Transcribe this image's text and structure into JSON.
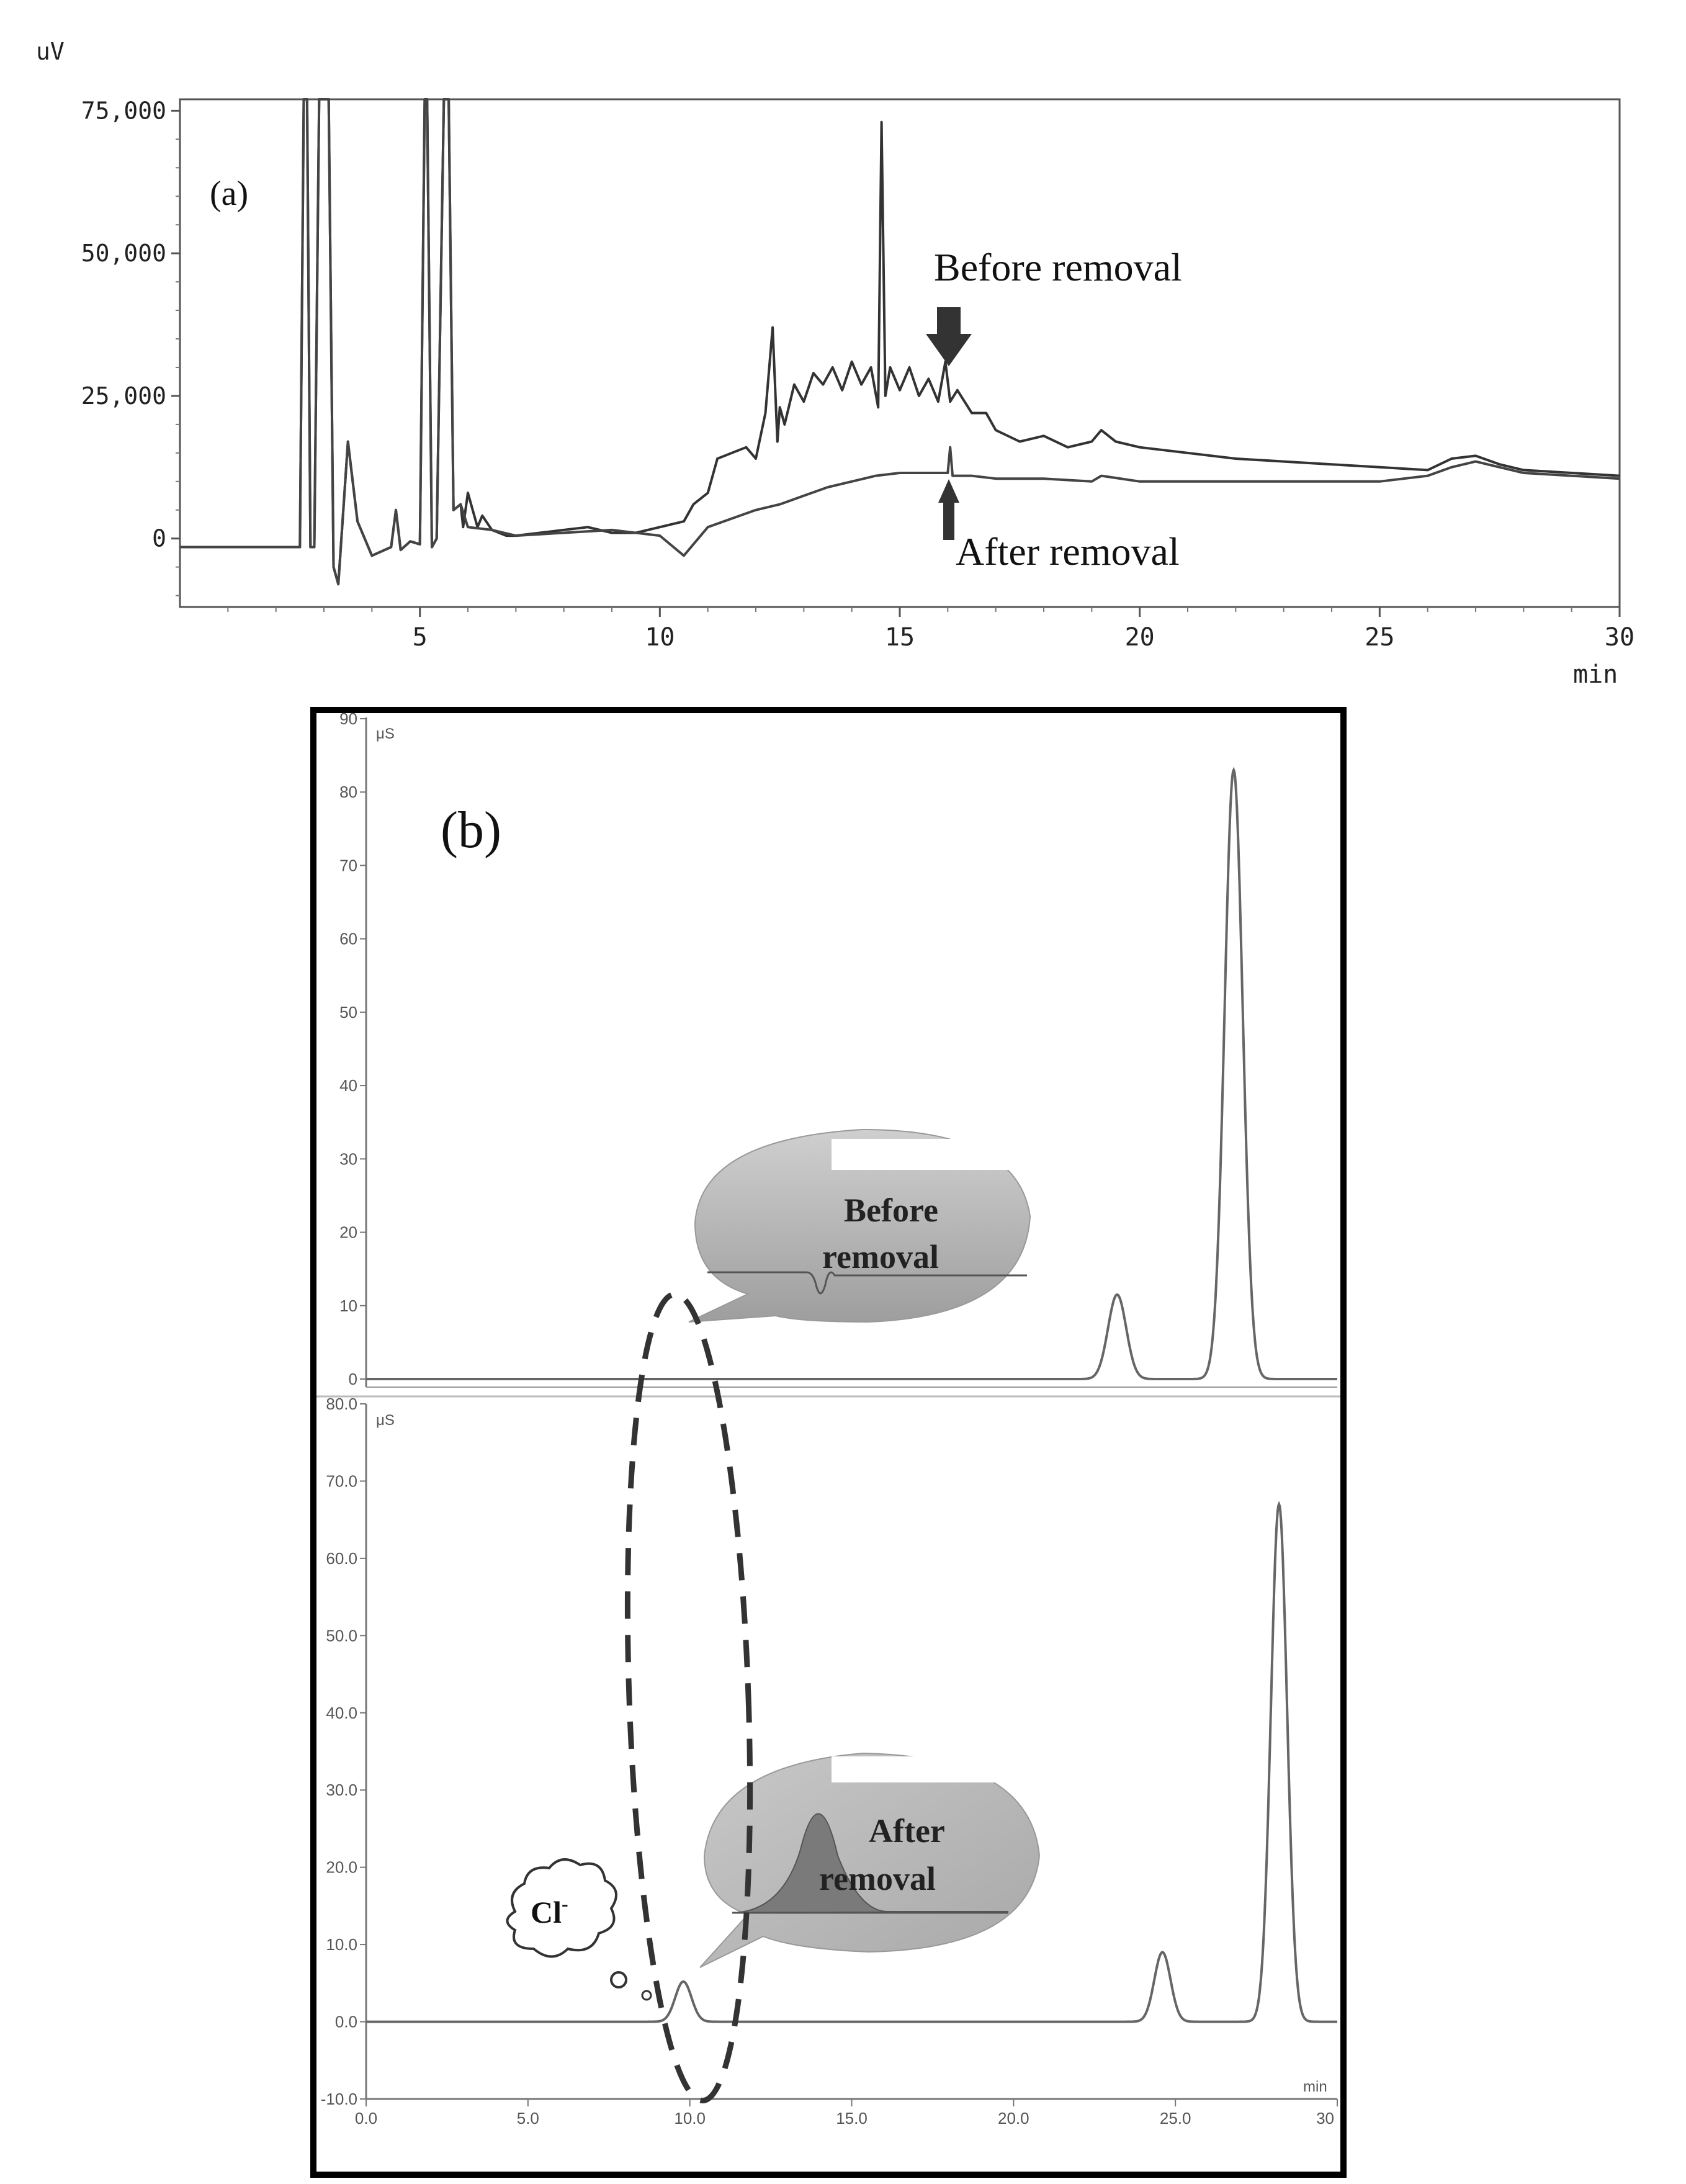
{
  "panel_a": {
    "label": "(a)",
    "y_unit": "uV",
    "x_unit": "min",
    "annotation_before": "Before removal",
    "annotation_after": "After removal",
    "y_tick_labels": [
      "75,000",
      "50,000",
      "25,000",
      "0"
    ],
    "x_tick_labels": [
      "5",
      "10",
      "15",
      "20",
      "25",
      "30"
    ],
    "arrow_before": "arrow-down-icon",
    "arrow_after": "arrow-up-icon"
  },
  "panel_b": {
    "label": "(b)",
    "top": {
      "y_unit": "μS",
      "y_tick_labels": [
        "90",
        "80",
        "70",
        "60",
        "50",
        "40",
        "30",
        "20",
        "10",
        "0"
      ],
      "bubble_text_1": "Before",
      "bubble_text_2": "removal"
    },
    "bottom": {
      "y_unit": "μS",
      "y_tick_labels": [
        "80.0",
        "70.0",
        "60.0",
        "50.0",
        "40.0",
        "30.0",
        "20.0",
        "10.0",
        "0.0",
        "-10.0"
      ],
      "x_unit": "min",
      "x_tick_labels": [
        "0.0",
        "5.0",
        "10.0",
        "15.0",
        "20.0",
        "25.0",
        "30"
      ],
      "bubble_text_1": "After",
      "bubble_text_2": "removal",
      "cloud_label": "Cl",
      "cloud_superscript": "-"
    }
  },
  "chart_data": [
    {
      "type": "line",
      "xlim": [
        0,
        30
      ],
      "ylim": [
        -12000,
        77000
      ],
      "series": [
        {
          "name": "Before removal",
          "x": [
            0.0,
            2.5,
            2.58,
            2.65,
            2.72,
            2.8,
            2.9,
            3.1,
            3.2,
            3.3,
            3.5,
            3.7,
            4.0,
            4.4,
            4.5,
            4.6,
            4.8,
            5.0,
            5.1,
            5.15,
            5.25,
            5.35,
            5.5,
            5.6,
            5.7,
            5.85,
            5.9,
            6.0,
            6.2,
            6.3,
            6.5,
            6.8,
            7.0,
            7.5,
            8.0,
            8.5,
            9.0,
            9.5,
            10.0,
            10.5,
            10.7,
            11.0,
            11.2,
            11.5,
            11.8,
            12.0,
            12.2,
            12.35,
            12.45,
            12.5,
            12.6,
            12.8,
            13.0,
            13.2,
            13.4,
            13.6,
            13.8,
            14.0,
            14.2,
            14.4,
            14.55,
            14.62,
            14.7,
            14.8,
            15.0,
            15.2,
            15.4,
            15.6,
            15.8,
            15.95,
            16.05,
            16.2,
            16.5,
            16.8,
            17.0,
            17.5,
            18.0,
            18.5,
            19.0,
            19.2,
            19.5,
            20.0,
            21.0,
            22.0,
            23.0,
            24.0,
            25.0,
            26.0,
            26.5,
            27.0,
            27.5,
            28.0,
            29.0,
            30.0
          ],
          "y": [
            -1500,
            -1500,
            77000,
            77000,
            -1500,
            -1500,
            77000,
            77000,
            -5000,
            -8000,
            17000,
            3000,
            -3000,
            -1500,
            5000,
            -2000,
            -500,
            -1000,
            77000,
            77000,
            -1500,
            0,
            77000,
            77000,
            5000,
            6000,
            2000,
            8000,
            2000,
            4000,
            1500,
            500,
            500,
            1000,
            1500,
            2000,
            1000,
            1000,
            2000,
            3000,
            6000,
            8000,
            14000,
            15000,
            16000,
            14000,
            22000,
            37000,
            17000,
            23000,
            20000,
            27000,
            24000,
            29000,
            27000,
            30000,
            26000,
            31000,
            27000,
            30000,
            23000,
            73000,
            25000,
            30000,
            26000,
            30000,
            25000,
            28000,
            24000,
            31000,
            24000,
            26000,
            22000,
            22000,
            19000,
            17000,
            18000,
            16000,
            17000,
            19000,
            17000,
            16000,
            15000,
            14000,
            13500,
            13000,
            12500,
            12000,
            14000,
            14500,
            13000,
            12000,
            11500,
            11000
          ]
        },
        {
          "name": "After removal",
          "x": [
            0.0,
            2.5,
            2.58,
            2.65,
            2.72,
            2.8,
            2.9,
            3.1,
            3.2,
            3.3,
            3.5,
            3.7,
            4.0,
            4.4,
            4.5,
            4.6,
            4.8,
            5.0,
            5.1,
            5.15,
            5.25,
            5.35,
            5.5,
            5.6,
            5.7,
            5.85,
            6.0,
            6.5,
            7.0,
            8.0,
            9.0,
            10.0,
            10.5,
            11.0,
            11.5,
            12.0,
            12.5,
            13.0,
            13.5,
            14.0,
            14.5,
            15.0,
            15.5,
            16.0,
            16.05,
            16.1,
            16.5,
            17.0,
            18.0,
            19.0,
            19.2,
            20.0,
            22.0,
            24.0,
            25.0,
            26.0,
            26.5,
            27.0,
            27.5,
            28.0,
            29.0,
            30.0
          ],
          "y": [
            -1500,
            -1500,
            77000,
            77000,
            -1500,
            -1500,
            77000,
            77000,
            -5000,
            -8000,
            17000,
            3000,
            -3000,
            -1500,
            5000,
            -2000,
            -500,
            -1000,
            77000,
            77000,
            -1500,
            0,
            77000,
            77000,
            5000,
            6000,
            2000,
            1500,
            500,
            1000,
            1500,
            500,
            -3000,
            2000,
            3500,
            5000,
            6000,
            7500,
            9000,
            10000,
            11000,
            11500,
            11500,
            11500,
            16000,
            11000,
            11000,
            10500,
            10500,
            10000,
            11000,
            10000,
            10000,
            10000,
            10000,
            11000,
            12500,
            13500,
            12500,
            11500,
            11000,
            10500
          ]
        }
      ]
    },
    {
      "type": "line",
      "xlim": [
        0,
        30
      ],
      "ylim": [
        0,
        90
      ],
      "peaks": [
        {
          "x": 23.2,
          "height": 11.5
        },
        {
          "x": 26.8,
          "height": 83
        }
      ]
    },
    {
      "type": "line",
      "xlim": [
        0,
        30
      ],
      "ylim": [
        -10,
        80
      ],
      "peaks": [
        {
          "x": 9.8,
          "height": 5.2
        },
        {
          "x": 24.6,
          "height": 9.0
        },
        {
          "x": 28.2,
          "height": 67
        }
      ]
    }
  ]
}
